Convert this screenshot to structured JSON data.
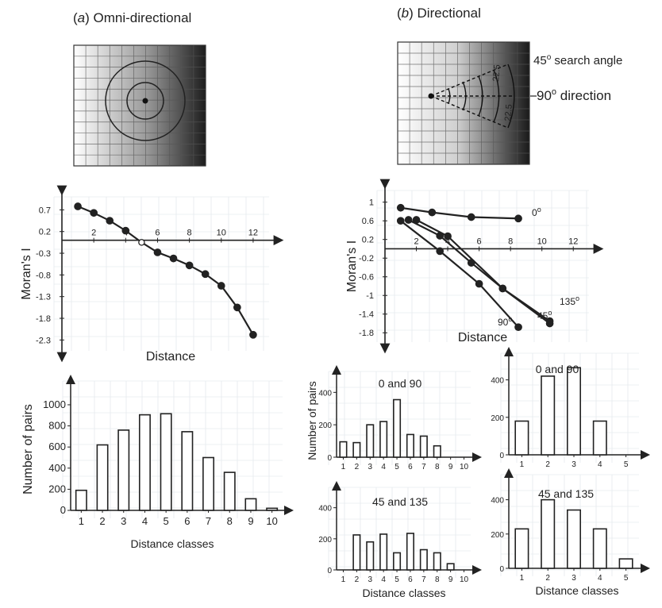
{
  "panel_titles": {
    "a_letter": "a",
    "a_text": "Omni-directional",
    "b_letter": "b",
    "b_text": "Directional"
  },
  "diagram_b": {
    "search_angle_value": "45",
    "search_angle_label": "search angle",
    "direction_value": "90",
    "direction_label": "direction",
    "half_angle_1": "22.5",
    "half_angle_2": "22.5"
  },
  "degree_symbol": "o",
  "colors": {
    "ink": "#222222",
    "grid": "#dde3e8",
    "marker": "#2b2b2b",
    "background": "#ffffff"
  },
  "chart_data": [
    {
      "id": "a_correlogram",
      "type": "line",
      "xlabel": "Distance",
      "ylabel": "Moran's I",
      "xticks": [
        2,
        4,
        6,
        8,
        10,
        12
      ],
      "yticks": [
        0.7,
        0.2,
        -0.3,
        -0.8,
        -1.3,
        -1.8,
        -2.3
      ],
      "xlim": [
        0,
        13
      ],
      "ylim": [
        -2.55,
        1.0
      ],
      "series": [
        {
          "x": [
            1,
            2,
            3,
            4,
            5,
            6,
            7,
            8,
            9,
            10,
            11,
            12
          ],
          "y": [
            0.78,
            0.63,
            0.45,
            0.22,
            -0.05,
            -0.28,
            -0.42,
            -0.58,
            -0.78,
            -1.05,
            -1.55,
            -2.18
          ],
          "open": [
            false,
            false,
            false,
            false,
            true,
            false,
            false,
            false,
            false,
            false,
            false,
            false
          ]
        }
      ]
    },
    {
      "id": "b_correlogram",
      "type": "line",
      "xlabel": "Distance",
      "ylabel": "Moran's I",
      "xticks": [
        2,
        4,
        6,
        8,
        10,
        12
      ],
      "yticks": [
        1,
        0.6,
        0.2,
        -0.2,
        -0.6,
        -1,
        -1.4,
        -1.8
      ],
      "xlim": [
        0,
        13
      ],
      "ylim": [
        -2.0,
        1.25
      ],
      "series": [
        {
          "name": "0",
          "x": [
            1,
            3,
            5.5,
            8.5
          ],
          "y": [
            0.88,
            0.78,
            0.68,
            0.65
          ]
        },
        {
          "name": "45",
          "x": [
            2,
            4,
            7.5,
            10.5
          ],
          "y": [
            0.62,
            0.27,
            -0.85,
            -1.6
          ]
        },
        {
          "name": "135",
          "x": [
            1.5,
            3.5,
            5.5,
            7.5,
            10.5
          ],
          "y": [
            0.62,
            0.28,
            -0.3,
            -0.85,
            -1.55
          ]
        },
        {
          "name": "90",
          "x": [
            1,
            3.5,
            6,
            8.5
          ],
          "y": [
            0.6,
            -0.05,
            -0.75,
            -1.68
          ]
        }
      ]
    },
    {
      "id": "a_hist",
      "type": "bar",
      "xlabel": "Distance classes",
      "ylabel": "Number of pairs",
      "categories": [
        "1",
        "2",
        "3",
        "4",
        "5",
        "6",
        "7",
        "8",
        "9",
        "10"
      ],
      "values": [
        190,
        620,
        760,
        905,
        915,
        745,
        500,
        360,
        110,
        20
      ],
      "yticks": [
        0,
        200,
        400,
        600,
        800,
        1000
      ],
      "ylim": [
        0,
        1150
      ]
    },
    {
      "id": "b_hist_fine_0_90",
      "type": "bar",
      "title": "0 and 90",
      "ylabel": "Number of pairs",
      "categories": [
        "1",
        "2",
        "3",
        "4",
        "5",
        "6",
        "7",
        "8",
        "9",
        "10"
      ],
      "values": [
        95,
        90,
        200,
        220,
        355,
        140,
        130,
        70,
        0,
        0
      ],
      "yticks": [
        0,
        200,
        400
      ],
      "ylim": [
        0,
        480
      ]
    },
    {
      "id": "b_hist_fine_45_135",
      "type": "bar",
      "title": "45 and 135",
      "xlabel": "Distance classes",
      "categories": [
        "1",
        "2",
        "3",
        "4",
        "5",
        "6",
        "7",
        "8",
        "9",
        "10"
      ],
      "values": [
        0,
        225,
        180,
        230,
        110,
        235,
        130,
        110,
        40,
        0
      ],
      "yticks": [
        0,
        200,
        400
      ],
      "ylim": [
        0,
        480
      ]
    },
    {
      "id": "b_hist_coarse_0_90",
      "type": "bar",
      "title": "0 and 90",
      "categories": [
        "1",
        "2",
        "3",
        "4",
        "5"
      ],
      "values": [
        180,
        420,
        465,
        180,
        0
      ],
      "yticks": [
        0,
        200,
        400
      ],
      "ylim": [
        0,
        500
      ]
    },
    {
      "id": "b_hist_coarse_45_135",
      "type": "bar",
      "title": "45 and 135",
      "xlabel": "Distance classes",
      "categories": [
        "1",
        "2",
        "3",
        "4",
        "5"
      ],
      "values": [
        230,
        400,
        340,
        230,
        55
      ],
      "yticks": [
        0,
        200,
        400
      ],
      "ylim": [
        0,
        500
      ]
    }
  ]
}
